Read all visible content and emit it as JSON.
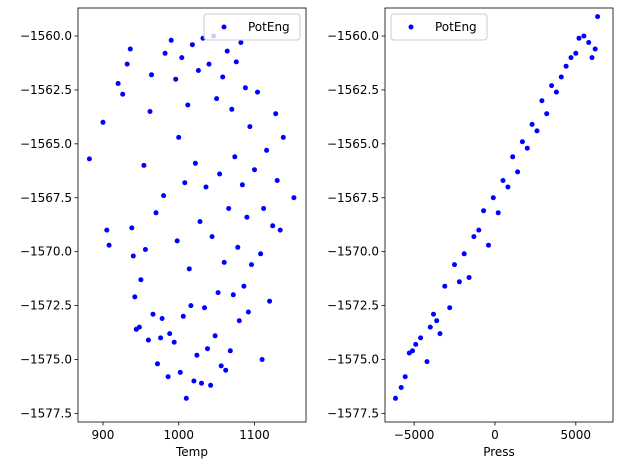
{
  "chart_data": [
    {
      "type": "scatter",
      "xlabel": "Temp",
      "ylabel": "",
      "xlim": [
        867,
        1168
      ],
      "ylim": [
        -1577.9,
        -1558.7
      ],
      "xticks": [
        900,
        1000,
        1100
      ],
      "xtick_labels": [
        "900",
        "1000",
        "1100"
      ],
      "yticks": [
        -1577.5,
        -1575.0,
        -1572.5,
        -1570.0,
        -1567.5,
        -1565.0,
        -1562.5,
        -1560.0
      ],
      "ytick_labels": [
        "−1577.5",
        "−1575.0",
        "−1572.5",
        "−1570.0",
        "−1567.5",
        "−1565.0",
        "−1562.5",
        "−1560.0"
      ],
      "legend_position": "top-right",
      "series": [
        {
          "name": "PotEng",
          "color": "#0000ff",
          "marker": "circle",
          "points": [
            [
              882,
              -1565.7
            ],
            [
              900,
              -1564.0
            ],
            [
              905,
              -1569.0
            ],
            [
              908,
              -1569.7
            ],
            [
              920,
              -1562.2
            ],
            [
              926,
              -1562.7
            ],
            [
              932,
              -1561.3
            ],
            [
              936,
              -1560.6
            ],
            [
              938,
              -1568.9
            ],
            [
              940,
              -1570.2
            ],
            [
              942,
              -1572.1
            ],
            [
              944,
              -1573.6
            ],
            [
              948,
              -1573.5
            ],
            [
              950,
              -1571.3
            ],
            [
              954,
              -1566.0
            ],
            [
              956,
              -1569.9
            ],
            [
              960,
              -1574.1
            ],
            [
              962,
              -1563.5
            ],
            [
              964,
              -1561.8
            ],
            [
              966,
              -1572.9
            ],
            [
              970,
              -1568.2
            ],
            [
              972,
              -1575.2
            ],
            [
              976,
              -1574.0
            ],
            [
              978,
              -1573.1
            ],
            [
              980,
              -1567.4
            ],
            [
              982,
              -1560.8
            ],
            [
              986,
              -1575.8
            ],
            [
              988,
              -1573.8
            ],
            [
              990,
              -1560.2
            ],
            [
              994,
              -1574.2
            ],
            [
              996,
              -1562.0
            ],
            [
              998,
              -1569.5
            ],
            [
              1000,
              -1564.7
            ],
            [
              1002,
              -1575.6
            ],
            [
              1004,
              -1561.0
            ],
            [
              1006,
              -1573.0
            ],
            [
              1008,
              -1566.8
            ],
            [
              1010,
              -1576.8
            ],
            [
              1012,
              -1563.2
            ],
            [
              1014,
              -1570.8
            ],
            [
              1016,
              -1572.5
            ],
            [
              1018,
              -1560.4
            ],
            [
              1020,
              -1576.0
            ],
            [
              1022,
              -1565.9
            ],
            [
              1024,
              -1574.8
            ],
            [
              1026,
              -1561.6
            ],
            [
              1028,
              -1568.6
            ],
            [
              1030,
              -1576.1
            ],
            [
              1032,
              -1560.1
            ],
            [
              1034,
              -1572.6
            ],
            [
              1036,
              -1567.0
            ],
            [
              1038,
              -1574.5
            ],
            [
              1040,
              -1561.3
            ],
            [
              1042,
              -1576.2
            ],
            [
              1044,
              -1569.3
            ],
            [
              1046,
              -1560.0
            ],
            [
              1048,
              -1573.9
            ],
            [
              1050,
              -1562.9
            ],
            [
              1052,
              -1571.9
            ],
            [
              1054,
              -1566.4
            ],
            [
              1056,
              -1575.3
            ],
            [
              1058,
              -1561.9
            ],
            [
              1060,
              -1570.5
            ],
            [
              1062,
              -1575.5
            ],
            [
              1064,
              -1560.7
            ],
            [
              1066,
              -1568.0
            ],
            [
              1068,
              -1574.6
            ],
            [
              1070,
              -1563.4
            ],
            [
              1072,
              -1572.0
            ],
            [
              1074,
              -1565.6
            ],
            [
              1076,
              -1561.2
            ],
            [
              1078,
              -1569.8
            ],
            [
              1080,
              -1573.2
            ],
            [
              1082,
              -1560.3
            ],
            [
              1084,
              -1566.9
            ],
            [
              1086,
              -1571.6
            ],
            [
              1088,
              -1562.4
            ],
            [
              1090,
              -1568.4
            ],
            [
              1092,
              -1572.8
            ],
            [
              1094,
              -1564.2
            ],
            [
              1096,
              -1570.6
            ],
            [
              1100,
              -1566.2
            ],
            [
              1104,
              -1562.6
            ],
            [
              1108,
              -1570.1
            ],
            [
              1110,
              -1575.0
            ],
            [
              1112,
              -1568.0
            ],
            [
              1116,
              -1565.3
            ],
            [
              1120,
              -1572.3
            ],
            [
              1124,
              -1568.8
            ],
            [
              1128,
              -1563.6
            ],
            [
              1130,
              -1566.7
            ],
            [
              1134,
              -1569.0
            ],
            [
              1138,
              -1564.7
            ],
            [
              1152,
              -1567.5
            ]
          ]
        }
      ]
    },
    {
      "type": "scatter",
      "xlabel": "Press",
      "ylabel": "",
      "xlim": [
        -6800,
        7300
      ],
      "ylim": [
        -1577.9,
        -1558.7
      ],
      "xticks": [
        -5000,
        0,
        5000
      ],
      "xtick_labels": [
        "−5000",
        "0",
        "5000"
      ],
      "yticks": [
        -1577.5,
        -1575.0,
        -1572.5,
        -1570.0,
        -1567.5,
        -1565.0,
        -1562.5,
        -1560.0
      ],
      "ytick_labels": [
        "−1577.5",
        "−1575.0",
        "−1572.5",
        "−1570.0",
        "−1567.5",
        "−1565.0",
        "−1562.5",
        "−1560.0"
      ],
      "legend_position": "top-left",
      "series": [
        {
          "name": "PotEng",
          "color": "#0000ff",
          "marker": "circle",
          "points": [
            [
              -6150,
              -1576.8
            ],
            [
              -5800,
              -1576.3
            ],
            [
              -5550,
              -1575.8
            ],
            [
              -5300,
              -1574.7
            ],
            [
              -5100,
              -1574.6
            ],
            [
              -4900,
              -1574.3
            ],
            [
              -4600,
              -1574.0
            ],
            [
              -4200,
              -1575.1
            ],
            [
              -4000,
              -1573.5
            ],
            [
              -3800,
              -1572.9
            ],
            [
              -3600,
              -1573.2
            ],
            [
              -3400,
              -1573.8
            ],
            [
              -3100,
              -1571.6
            ],
            [
              -2800,
              -1572.6
            ],
            [
              -2500,
              -1570.6
            ],
            [
              -2200,
              -1571.4
            ],
            [
              -1900,
              -1570.1
            ],
            [
              -1600,
              -1571.2
            ],
            [
              -1300,
              -1569.3
            ],
            [
              -1000,
              -1569.0
            ],
            [
              -700,
              -1568.1
            ],
            [
              -400,
              -1569.7
            ],
            [
              -100,
              -1567.5
            ],
            [
              200,
              -1568.2
            ],
            [
              500,
              -1566.7
            ],
            [
              800,
              -1567.0
            ],
            [
              1100,
              -1565.6
            ],
            [
              1400,
              -1566.3
            ],
            [
              1700,
              -1564.9
            ],
            [
              2000,
              -1565.2
            ],
            [
              2300,
              -1564.1
            ],
            [
              2600,
              -1564.4
            ],
            [
              2900,
              -1563.0
            ],
            [
              3200,
              -1563.6
            ],
            [
              3500,
              -1562.3
            ],
            [
              3800,
              -1562.6
            ],
            [
              4100,
              -1561.9
            ],
            [
              4400,
              -1561.4
            ],
            [
              4700,
              -1561.0
            ],
            [
              5000,
              -1560.8
            ],
            [
              5200,
              -1560.1
            ],
            [
              5500,
              -1560.0
            ],
            [
              5800,
              -1560.3
            ],
            [
              6000,
              -1561.0
            ],
            [
              6200,
              -1560.6
            ],
            [
              6350,
              -1559.1
            ]
          ]
        }
      ]
    }
  ]
}
